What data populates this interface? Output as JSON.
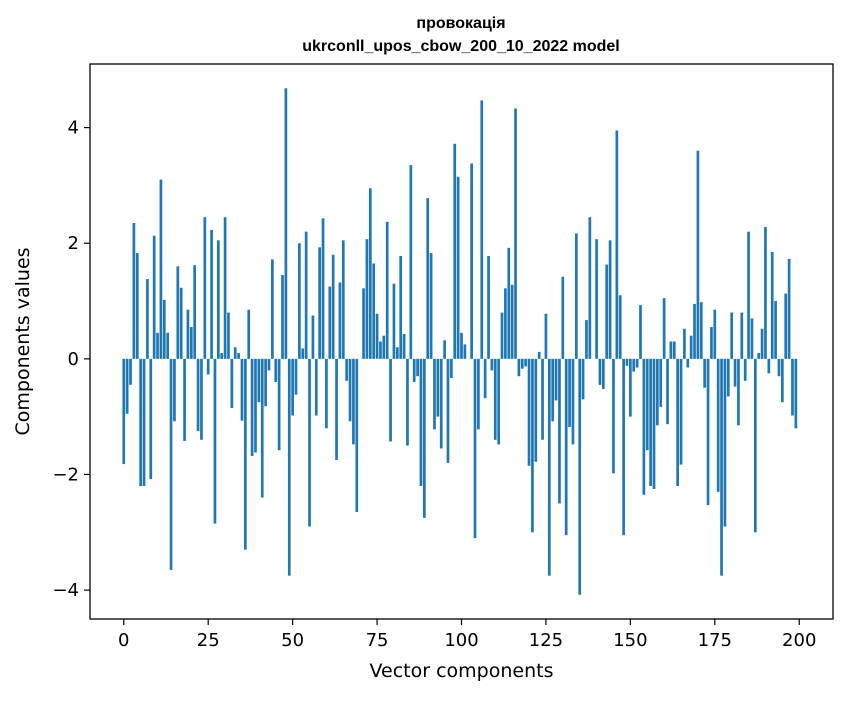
{
  "chart_data": {
    "type": "bar",
    "title_line1": "провокація",
    "title_line2": "ukrconll_upos_cbow_200_10_2022 model",
    "xlabel": "Vector components",
    "ylabel": "Components values",
    "xlim": [
      -10,
      210
    ],
    "ylim": [
      -4.5,
      5.1
    ],
    "xticks": [
      0,
      25,
      50,
      75,
      100,
      125,
      150,
      175,
      200
    ],
    "yticks": [
      -4,
      -2,
      0,
      2,
      4
    ],
    "ytick_labels": [
      "−4",
      "−2",
      "0",
      "2",
      "4"
    ],
    "grid": false,
    "bar_color": "#1f77b4",
    "values": [
      -1.82,
      -0.95,
      -0.45,
      2.35,
      1.83,
      -2.2,
      -2.2,
      1.38,
      -2.08,
      2.13,
      0.45,
      3.1,
      1.02,
      0.45,
      -3.65,
      -1.08,
      1.6,
      1.23,
      -1.42,
      0.85,
      0.55,
      1.62,
      -1.25,
      -1.4,
      2.45,
      -0.27,
      2.23,
      -2.85,
      2.05,
      0.1,
      2.45,
      0.8,
      -0.85,
      0.2,
      0.1,
      -1.07,
      -3.3,
      0.85,
      -1.68,
      -1.62,
      -0.75,
      -2.4,
      -0.82,
      -0.2,
      1.72,
      -0.4,
      -1.58,
      1.45,
      4.68,
      -3.75,
      -0.98,
      -0.62,
      2.0,
      0.18,
      2.2,
      -2.9,
      0.75,
      -0.98,
      1.93,
      2.43,
      -1.2,
      1.25,
      1.8,
      -1.75,
      1.32,
      2.05,
      -0.38,
      -1.08,
      -1.48,
      -2.65,
      0.0,
      1.22,
      2.07,
      2.95,
      1.65,
      0.78,
      0.3,
      0.4,
      2.37,
      -1.43,
      1.3,
      0.2,
      1.78,
      0.43,
      -1.5,
      3.35,
      -0.4,
      -0.3,
      -2.2,
      -2.75,
      2.78,
      1.83,
      -1.22,
      -1.0,
      -1.55,
      0.32,
      -1.8,
      -0.33,
      3.72,
      3.15,
      0.45,
      0.25,
      0.0,
      3.38,
      -3.1,
      -1.22,
      4.47,
      -0.68,
      1.78,
      -0.2,
      -1.4,
      -1.48,
      0.8,
      1.22,
      1.92,
      1.28,
      4.33,
      -0.3,
      -0.17,
      -0.13,
      -1.85,
      -3.0,
      -1.78,
      0.12,
      -1.4,
      0.78,
      -3.75,
      -1.08,
      -0.72,
      -2.5,
      1.42,
      -3.05,
      -1.18,
      -1.48,
      2.17,
      -4.08,
      -0.7,
      0.67,
      2.45,
      0.0,
      2.07,
      -0.45,
      -0.52,
      1.63,
      2.05,
      -1.98,
      3.95,
      1.1,
      -3.05,
      -0.12,
      -1.0,
      -0.22,
      -0.15,
      0.93,
      -2.35,
      -1.58,
      -2.2,
      -2.25,
      -1.15,
      -0.83,
      1.05,
      -1.13,
      0.3,
      0.3,
      -2.2,
      -1.83,
      0.52,
      -0.15,
      0.4,
      0.95,
      3.6,
      0.98,
      -0.5,
      -2.53,
      0.55,
      0.85,
      -2.3,
      -3.75,
      -2.9,
      -0.65,
      0.8,
      -0.48,
      -1.15,
      0.8,
      -0.38,
      2.2,
      0.7,
      -3.0,
      0.1,
      0.52,
      2.28,
      -0.25,
      1.85,
      1.0,
      -0.3,
      -0.75,
      1.13,
      1.73,
      -0.98,
      -1.2
    ]
  }
}
